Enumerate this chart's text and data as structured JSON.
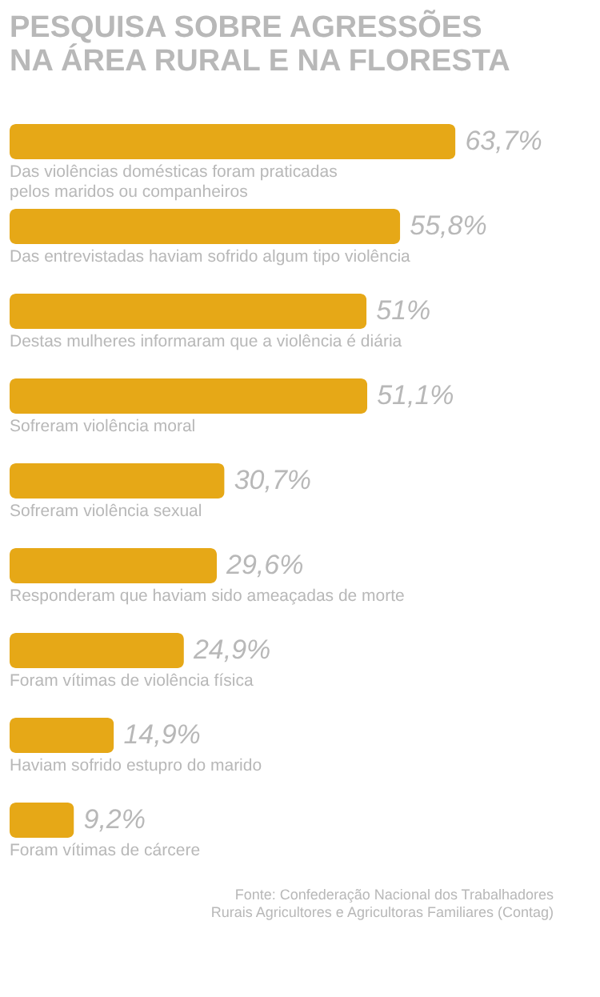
{
  "chart_data": {
    "type": "bar",
    "orientation": "horizontal",
    "title": "PESQUISA SOBRE AGRESSÕES\nNA ÁREA RURAL E NA FLORESTA",
    "categories": [
      "Das violências domésticas foram praticadas\npelos maridos ou companheiros",
      "Das entrevistadas haviam sofrido algum tipo violência",
      "Destas mulheres informaram que a violência é diária",
      "Sofreram violência moral",
      "Sofreram violência sexual",
      "Responderam que haviam sido ameaçadas de morte",
      "Foram vítimas de violência física",
      "Haviam sofrido estupro do marido",
      "Foram vítimas de cárcere"
    ],
    "values": [
      63.7,
      55.8,
      51,
      51.1,
      30.7,
      29.6,
      24.9,
      14.9,
      9.2
    ],
    "value_labels": [
      "63,7%",
      "55,8%",
      "51%",
      "51,1%",
      "30,7%",
      "29,6%",
      "24,9%",
      "14,9%",
      "9,2%"
    ],
    "color": "#e6a817",
    "annotations": [
      "Fonte: Confederação Nacional dos Trabalhadores\nRurais Agricultores e Agricultoras Familiares (Contag)"
    ]
  }
}
